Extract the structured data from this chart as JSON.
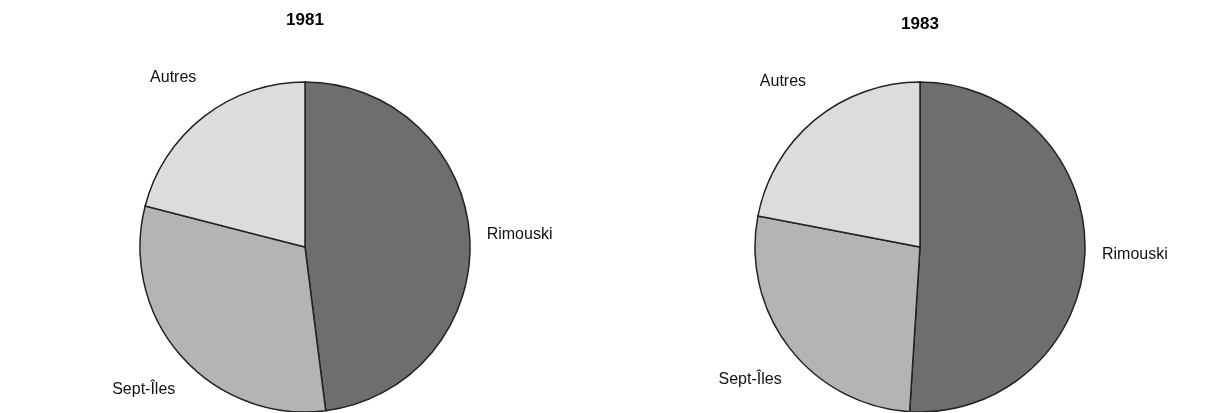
{
  "chart_data": [
    {
      "type": "pie",
      "title": "1981",
      "categories": [
        "Rimouski",
        "Sept-Îles",
        "Autres"
      ],
      "values": [
        48,
        31,
        21
      ],
      "colors": [
        "#6e6e6e",
        "#b4b4b4",
        "#dcdcdc"
      ]
    },
    {
      "type": "pie",
      "title": "1983",
      "categories": [
        "Rimouski",
        "Sept-Îles",
        "Autres"
      ],
      "values": [
        51,
        27,
        22
      ],
      "colors": [
        "#6e6e6e",
        "#b4b4b4",
        "#dcdcdc"
      ]
    }
  ]
}
